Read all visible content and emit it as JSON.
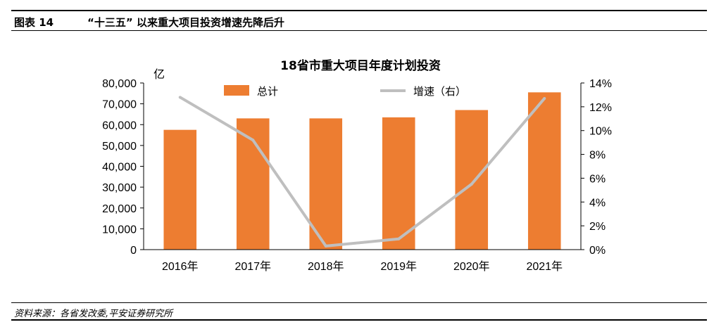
{
  "header": {
    "label": "图表 14",
    "title": "“十三五” 以来重大项目投资增速先降后升"
  },
  "footer": {
    "source": "资料来源：各省发改委,平安证券研究所"
  },
  "colors": {
    "bar": "#ED7D31",
    "line": "#BFBFBF",
    "axis": "#000000"
  },
  "chart_data": {
    "type": "bar",
    "title": "18省市重大项目年度计划投资",
    "y_unit": "亿",
    "categories": [
      "2016年",
      "2017年",
      "2018年",
      "2019年",
      "2020年",
      "2021年"
    ],
    "series": [
      {
        "name": "总计",
        "type": "bar",
        "axis": "left",
        "values": [
          57500,
          63000,
          63000,
          63500,
          67000,
          75500
        ]
      },
      {
        "name": "增速（右）",
        "type": "line",
        "axis": "right",
        "values": [
          12.8,
          9.2,
          0.3,
          0.9,
          5.5,
          12.7
        ]
      }
    ],
    "ylim": [
      0,
      80000
    ],
    "yticks": [
      "0",
      "10,000",
      "20,000",
      "30,000",
      "40,000",
      "50,000",
      "60,000",
      "70,000",
      "80,000"
    ],
    "y2lim": [
      0,
      14
    ],
    "y2ticks": [
      "0%",
      "2%",
      "4%",
      "6%",
      "8%",
      "10%",
      "12%",
      "14%"
    ],
    "grid": false,
    "legend": "top"
  }
}
